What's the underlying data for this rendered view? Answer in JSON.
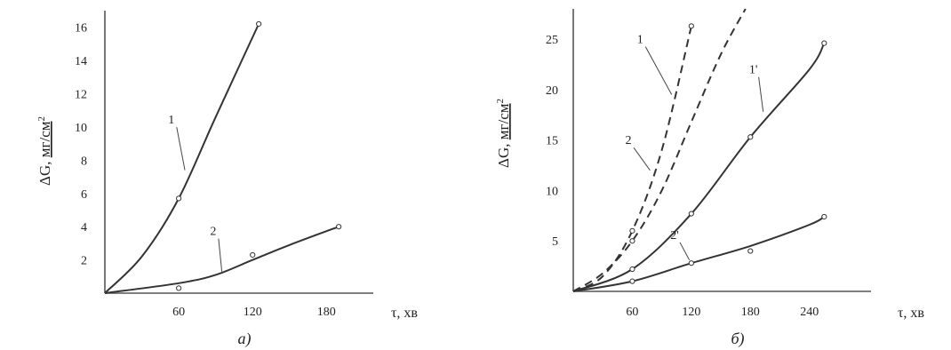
{
  "chart_data": [
    {
      "id": "a",
      "type": "line",
      "caption": "а)",
      "ylabel_main": "ΔG, ",
      "ylabel_unit": "мг/см",
      "ylabel_sup": "2",
      "xlabel": "τ, хв",
      "xlim": [
        0,
        200
      ],
      "ylim": [
        0,
        17
      ],
      "xticks": [
        {
          "value": 60,
          "label": "60"
        },
        {
          "value": 120,
          "label": "120"
        },
        {
          "value": 180,
          "label": "180"
        }
      ],
      "yticks": [
        {
          "value": 2,
          "label": "2"
        },
        {
          "value": 4,
          "label": "4"
        },
        {
          "value": 6,
          "label": "6"
        },
        {
          "value": 8,
          "label": "8"
        },
        {
          "value": 10,
          "label": "10"
        },
        {
          "value": 12,
          "label": "12"
        },
        {
          "value": 14,
          "label": "14"
        },
        {
          "value": 16,
          "label": "16"
        }
      ],
      "series": [
        {
          "label": "1",
          "style": "solid",
          "points": [
            [
              0,
              0
            ],
            [
              30,
              2.2
            ],
            [
              60,
              5.7
            ],
            [
              90,
              10.6
            ],
            [
              125,
              16.2
            ]
          ],
          "markers": [
            [
              60,
              5.7
            ],
            [
              125,
              16.2
            ]
          ],
          "label_pos": [
            54,
            10.2
          ],
          "leader_to": [
            65,
            7.4
          ]
        },
        {
          "label": "2",
          "style": "solid",
          "points": [
            [
              0,
              0
            ],
            [
              60,
              0.6
            ],
            [
              90,
              1.1
            ],
            [
              120,
              2.0
            ],
            [
              150,
              2.9
            ],
            [
              190,
              4.0
            ]
          ],
          "markers": [
            [
              60,
              0.3
            ],
            [
              120,
              2.3
            ],
            [
              190,
              4.0
            ]
          ],
          "label_pos": [
            88,
            3.5
          ],
          "leader_to": [
            95,
            1.3
          ]
        }
      ]
    },
    {
      "id": "b",
      "type": "line",
      "caption": "б)",
      "ylabel_main": "ΔG, ",
      "ylabel_unit": "мг/см",
      "ylabel_sup": "2",
      "xlabel": "τ, хв",
      "xlim": [
        0,
        280
      ],
      "ylim": [
        0,
        28
      ],
      "xticks": [
        {
          "value": 60,
          "label": "60"
        },
        {
          "value": 120,
          "label": "120"
        },
        {
          "value": 180,
          "label": "180"
        },
        {
          "value": 240,
          "label": "240"
        }
      ],
      "yticks": [
        {
          "value": 5,
          "label": "5"
        },
        {
          "value": 10,
          "label": "10"
        },
        {
          "value": 15,
          "label": "15"
        },
        {
          "value": 20,
          "label": "20"
        },
        {
          "value": 25,
          "label": "25"
        }
      ],
      "series": [
        {
          "label": "1",
          "style": "dashed",
          "points": [
            [
              0,
              0
            ],
            [
              30,
              1.5
            ],
            [
              60,
              6.0
            ],
            [
              90,
              14.0
            ],
            [
              120,
              26.3
            ]
          ],
          "markers": [
            [
              60,
              6.0
            ],
            [
              120,
              26.3
            ]
          ],
          "label_pos": [
            68,
            24.6
          ],
          "leader_to": [
            100,
            19.5
          ]
        },
        {
          "label": "2",
          "style": "dashed",
          "points": [
            [
              0,
              0
            ],
            [
              30,
              1.8
            ],
            [
              60,
              5.0
            ],
            [
              90,
              10.0
            ],
            [
              120,
              16.8
            ],
            [
              150,
              23.5
            ],
            [
              175,
              28.0
            ]
          ],
          "markers": [
            [
              60,
              5.0
            ]
          ],
          "label_pos": [
            56,
            14.6
          ],
          "leader_to": [
            78,
            12.0
          ]
        },
        {
          "label": "1'",
          "style": "solid",
          "points": [
            [
              0,
              0
            ],
            [
              60,
              2.2
            ],
            [
              120,
              7.7
            ],
            [
              180,
              15.3
            ],
            [
              240,
              22.0
            ],
            [
              255,
              24.6
            ]
          ],
          "markers": [
            [
              60,
              2.2
            ],
            [
              120,
              7.7
            ],
            [
              180,
              15.3
            ],
            [
              255,
              24.6
            ]
          ],
          "label_pos": [
            183,
            21.6
          ],
          "leader_to": [
            193,
            17.8
          ]
        },
        {
          "label": "2'",
          "style": "solid",
          "points": [
            [
              0,
              0
            ],
            [
              60,
              1.0
            ],
            [
              120,
              2.8
            ],
            [
              180,
              4.5
            ],
            [
              240,
              6.6
            ],
            [
              255,
              7.4
            ]
          ],
          "markers": [
            [
              60,
              1.0
            ],
            [
              120,
              2.8
            ],
            [
              180,
              4.0
            ],
            [
              255,
              7.4
            ]
          ],
          "label_pos": [
            103,
            5.2
          ],
          "leader_to": [
            118,
            3.1
          ]
        }
      ]
    }
  ]
}
